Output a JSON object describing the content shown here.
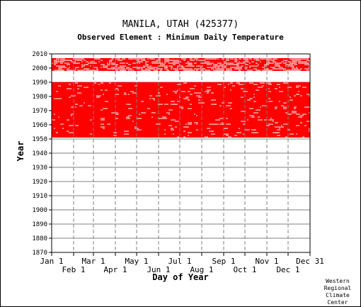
{
  "chart_data": {
    "type": "heatmap",
    "title": "MANILA, UTAH   (425377)",
    "subtitle": "Observed Element : Minimum Daily Temperature",
    "xlabel": "Day of Year",
    "ylabel": "Year",
    "ylim": [
      1870,
      2010
    ],
    "y_ticks": [
      1870,
      1880,
      1890,
      1900,
      1910,
      1920,
      1930,
      1940,
      1950,
      1960,
      1970,
      1980,
      1990,
      2000,
      2010
    ],
    "xlim": [
      1,
      366
    ],
    "x_ticks_top": [
      {
        "label": "Jan 1",
        "day": 1
      },
      {
        "label": "Mar 1",
        "day": 60
      },
      {
        "label": "May 1",
        "day": 121
      },
      {
        "label": "Jul 1",
        "day": 182
      },
      {
        "label": "Sep 1",
        "day": 244
      },
      {
        "label": "Nov 1",
        "day": 305
      },
      {
        "label": "Dec 31",
        "day": 366
      }
    ],
    "x_ticks_bottom": [
      {
        "label": "Feb 1",
        "day": 32
      },
      {
        "label": "Apr 1",
        "day": 91
      },
      {
        "label": "Jun 1",
        "day": 152
      },
      {
        "label": "Aug 1",
        "day": 213
      },
      {
        "label": "Oct 1",
        "day": 274
      },
      {
        "label": "Dec 1",
        "day": 335
      }
    ],
    "grid": true,
    "data_color": "#ff0000",
    "observed_periods": [
      {
        "start_year": 1951,
        "end_year": 1989,
        "coverage": "nearly complete"
      },
      {
        "start_year": 1998,
        "end_year": 1999,
        "coverage": "partial"
      },
      {
        "start_year": 2000,
        "end_year": 2006,
        "coverage": "nearly complete"
      }
    ]
  },
  "credit": "Western\nRegional\nClimate\nCenter"
}
